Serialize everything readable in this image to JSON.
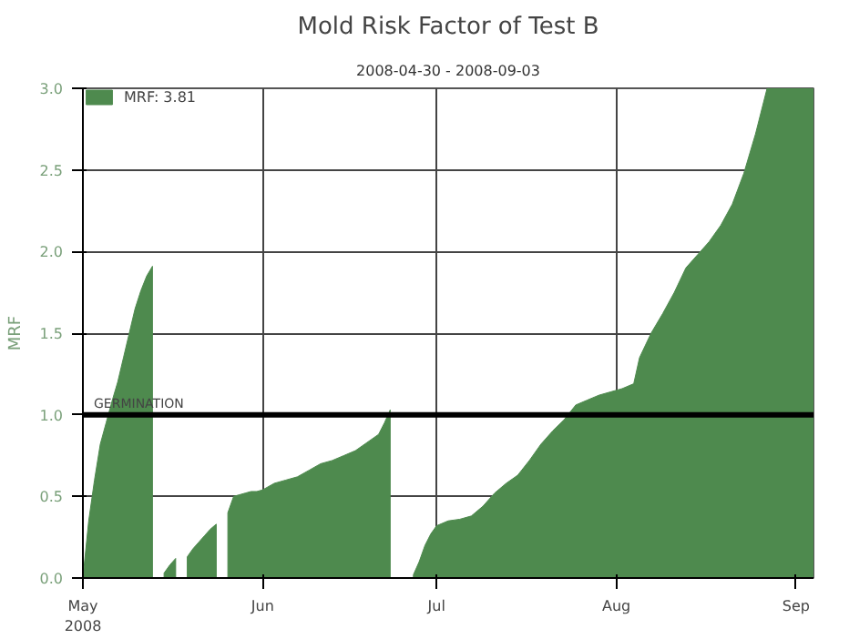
{
  "chart_data": {
    "type": "area",
    "title": "Mold Risk Factor of Test B",
    "subtitle": "2008-04-30 - 2008-09-03",
    "ylabel": "MRF",
    "x": [
      "2008-05-01",
      "2008-05-02",
      "2008-05-03",
      "2008-05-04",
      "2008-05-05",
      "2008-05-06",
      "2008-05-07",
      "2008-05-08",
      "2008-05-09",
      "2008-05-10",
      "2008-05-11",
      "2008-05-12",
      "2008-05-13",
      "2008-05-14",
      "2008-05-15",
      "2008-05-16",
      "2008-05-17",
      "2008-05-18",
      "2008-05-19",
      "2008-05-20",
      "2008-05-21",
      "2008-05-22",
      "2008-05-23",
      "2008-05-24",
      "2008-05-25",
      "2008-05-26",
      "2008-05-27",
      "2008-05-28",
      "2008-05-29",
      "2008-05-30",
      "2008-05-31",
      "2008-06-01",
      "2008-06-03",
      "2008-06-05",
      "2008-06-07",
      "2008-06-09",
      "2008-06-11",
      "2008-06-13",
      "2008-06-15",
      "2008-06-17",
      "2008-06-19",
      "2008-06-21",
      "2008-06-22",
      "2008-06-23",
      "2008-06-24",
      "2008-06-27",
      "2008-06-28",
      "2008-06-29",
      "2008-06-30",
      "2008-07-01",
      "2008-07-03",
      "2008-07-05",
      "2008-07-07",
      "2008-07-09",
      "2008-07-11",
      "2008-07-13",
      "2008-07-15",
      "2008-07-17",
      "2008-07-19",
      "2008-07-21",
      "2008-07-23",
      "2008-07-25",
      "2008-07-27",
      "2008-07-29",
      "2008-07-31",
      "2008-08-02",
      "2008-08-04",
      "2008-08-05",
      "2008-08-07",
      "2008-08-09",
      "2008-08-11",
      "2008-08-13",
      "2008-08-15",
      "2008-08-17",
      "2008-08-19",
      "2008-08-21",
      "2008-08-23",
      "2008-08-25",
      "2008-08-27",
      "2008-09-04"
    ],
    "series": [
      {
        "name": "MRF: 3.81",
        "color": "#4e8a4e",
        "values": [
          0.0,
          0.35,
          0.6,
          0.82,
          0.95,
          1.08,
          1.2,
          1.35,
          1.5,
          1.65,
          1.76,
          1.85,
          1.91,
          null,
          0.03,
          0.08,
          0.12,
          null,
          0.13,
          0.18,
          0.22,
          0.26,
          0.3,
          0.33,
          null,
          0.4,
          0.5,
          0.51,
          0.52,
          0.53,
          0.53,
          0.54,
          0.58,
          0.6,
          0.62,
          0.66,
          0.7,
          0.72,
          0.75,
          0.78,
          0.83,
          0.88,
          0.95,
          1.03,
          null,
          0.02,
          0.1,
          0.2,
          0.27,
          0.32,
          0.35,
          0.36,
          0.38,
          0.44,
          0.52,
          0.58,
          0.63,
          0.72,
          0.82,
          0.9,
          0.97,
          1.06,
          1.09,
          1.12,
          1.14,
          1.16,
          1.19,
          1.35,
          1.5,
          1.62,
          1.75,
          1.9,
          1.98,
          2.06,
          2.16,
          2.29,
          2.48,
          2.72,
          3.0,
          3.0
        ]
      }
    ],
    "xlim": [
      "2008-05-01",
      "2008-09-04"
    ],
    "xticks": [
      {
        "value": "2008-05-01",
        "label": "May\n2008"
      },
      {
        "value": "2008-06-01",
        "label": "Jun"
      },
      {
        "value": "2008-07-01",
        "label": "Jul"
      },
      {
        "value": "2008-08-01",
        "label": "Aug"
      },
      {
        "value": "2008-09-01",
        "label": "Sep"
      }
    ],
    "ylim": [
      0,
      3
    ],
    "yticks": [
      {
        "value": 0,
        "label": "0.0"
      },
      {
        "value": 0.5,
        "label": "0.5"
      },
      {
        "value": 1,
        "label": "1.0"
      },
      {
        "value": 1.5,
        "label": "1.5"
      },
      {
        "value": 2,
        "label": "2.0"
      },
      {
        "value": 2.5,
        "label": "2.5"
      },
      {
        "value": 3,
        "label": "3.0"
      }
    ],
    "ref_lines": [
      {
        "axis": "y",
        "value": 1.0,
        "label": "GERMINATION",
        "color": "#000000"
      }
    ],
    "grid": true,
    "legend": "top left"
  }
}
